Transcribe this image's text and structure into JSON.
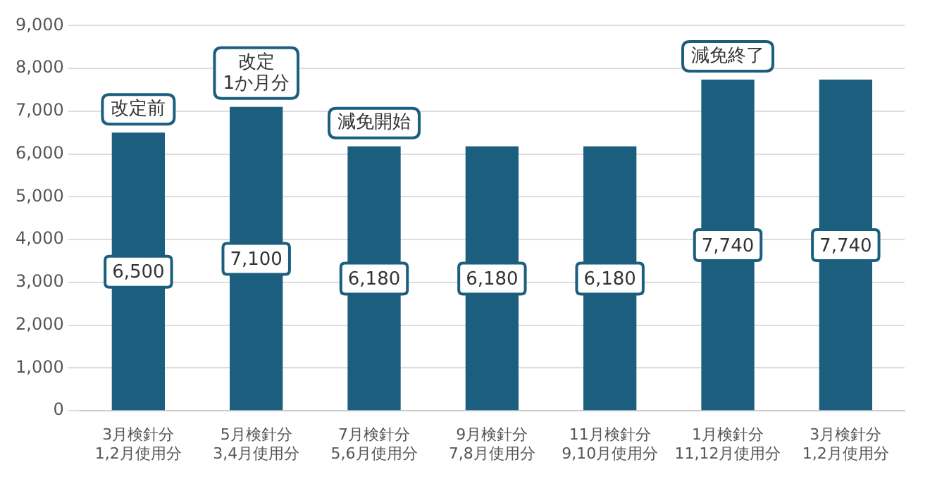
{
  "chart_data": {
    "type": "bar",
    "categories": [
      "3月検針分\n1,2月使用分",
      "5月検針分\n3,4月使用分",
      "7月検針分\n5,6月使用分",
      "9月検針分\n7,8月使用分",
      "11月検針分\n9,10月使用分",
      "1月検針分\n11,12月使用分",
      "3月検針分\n1,2月使用分"
    ],
    "values": [
      6500,
      7100,
      6180,
      6180,
      6180,
      7740,
      7740
    ],
    "value_labels": [
      "6,500",
      "7,100",
      "6,180",
      "6,180",
      "6,180",
      "7,740",
      "7,740"
    ],
    "color": "#1b5e7e",
    "ylim": [
      0,
      9000
    ],
    "yticks": [
      {
        "value": 0,
        "label": "0"
      },
      {
        "value": 1000,
        "label": "1,000"
      },
      {
        "value": 2000,
        "label": "2,000"
      },
      {
        "value": 3000,
        "label": "3,000"
      },
      {
        "value": 4000,
        "label": "4,000"
      },
      {
        "value": 5000,
        "label": "5,000"
      },
      {
        "value": 6000,
        "label": "6,000"
      },
      {
        "value": 7000,
        "label": "7,000"
      },
      {
        "value": 8000,
        "label": "8,000"
      },
      {
        "value": 9000,
        "label": "9,000"
      }
    ],
    "grid": "y",
    "annotations": [
      {
        "text": "改定前",
        "x": "3月検針分\n1,2月使用分",
        "y": 6500
      },
      {
        "text": "改定\n1か月分",
        "x": "5月検針分\n3,4月使用分",
        "y": 7100
      },
      {
        "text": "減免開始",
        "x": "7月検針分\n5,6月使用分",
        "y": 6180
      },
      {
        "text": "減免終了",
        "x": "1月検針分\n11,12月使用分",
        "y": 7740
      }
    ]
  }
}
